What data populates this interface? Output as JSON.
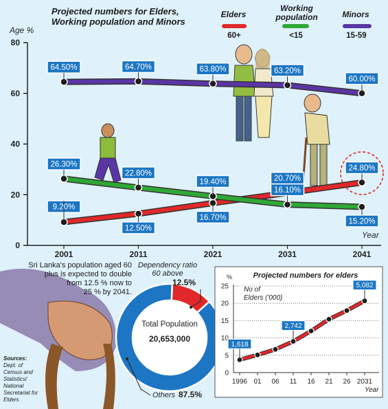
{
  "chart_data": [
    {
      "type": "line",
      "title": "Projected numbers for Elders, Working population and Minors",
      "ylabel": "Age %",
      "xlabel": "Year",
      "categories": [
        "2001",
        "2011",
        "2021",
        "2031",
        "2041"
      ],
      "ylim": [
        0,
        80
      ],
      "yticks": [
        "0",
        "20",
        "40",
        "60",
        "80"
      ],
      "series": [
        {
          "name": "Elders",
          "range": "60+",
          "color": "#e0282a",
          "values": [
            9.2,
            12.5,
            16.7,
            20.7,
            24.8
          ],
          "labels": [
            "9.20%",
            "12.50%",
            "16.70%",
            "20.70%",
            "24.80%"
          ]
        },
        {
          "name": "Working population",
          "range": "<15",
          "color": "#2fa836",
          "values": [
            26.3,
            22.8,
            19.4,
            16.1,
            15.2
          ],
          "labels": [
            "26.30%",
            "22.80%",
            "19.40%",
            "16.10%",
            "15.20%"
          ]
        },
        {
          "name": "Minors",
          "range": "15-59",
          "color": "#5a35a5",
          "values": [
            64.5,
            64.7,
            63.8,
            63.2,
            60.0
          ],
          "labels": [
            "64.50%",
            "64.70%",
            "63.80%",
            "63.20%",
            "60.00%"
          ]
        }
      ]
    },
    {
      "type": "pie",
      "title": "Total Population",
      "total": "20,653,000",
      "slices": [
        {
          "label": "Dependency ratio 60 above",
          "value": 12.5,
          "display": "12.5%",
          "color": "#e0282a"
        },
        {
          "label": "Others",
          "value": 87.5,
          "display": "87.5%",
          "color": "#1c76c4"
        }
      ]
    },
    {
      "type": "line",
      "title": "Projected numbers for elders",
      "ylabel": "%",
      "annotation": "No of Elders ('000)",
      "xlabel": "Year",
      "categories": [
        "1996",
        "01",
        "06",
        "11",
        "16",
        "21",
        "26",
        "2031"
      ],
      "ylim": [
        0,
        25
      ],
      "yticks": [
        "0",
        "5",
        "10",
        "15",
        "20",
        "25"
      ],
      "values": [
        3.7,
        5.1,
        6.7,
        9.0,
        12.0,
        15.4,
        17.9,
        20.7
      ],
      "callouts": [
        {
          "index": 0,
          "text": "1,618"
        },
        {
          "index": 3,
          "text": "2,742"
        },
        {
          "index": 7,
          "text": "5,082"
        }
      ]
    }
  ],
  "info_text": [
    "Sri Lanka's population aged 60",
    "plus is expected to double",
    "from 12.5 % now to",
    "25 % by 2041."
  ],
  "sources": {
    "heading": "Sources:",
    "lines": [
      "Dept. of",
      "Census and",
      "Statistics/",
      "National",
      "Secretariat for",
      "Elders"
    ]
  },
  "colors": {
    "background": "#dff1fa",
    "callout": "#1c76c4"
  }
}
